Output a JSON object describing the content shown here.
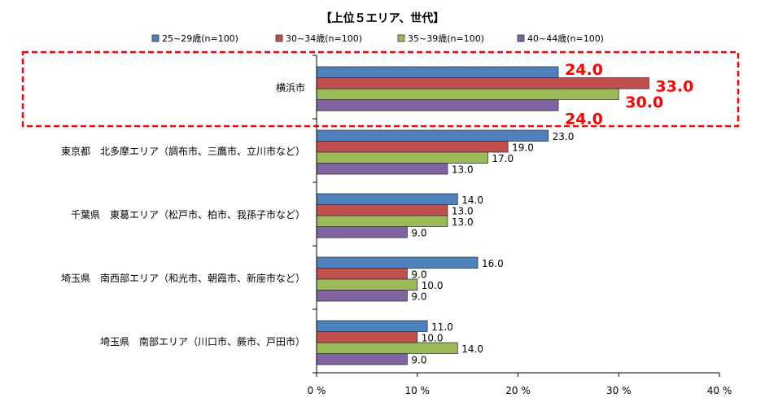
{
  "chart_data": {
    "type": "bar",
    "orientation": "horizontal",
    "title": "【上位５エリア、世代】",
    "categories": [
      "横浜市",
      "東京都　北多摩エリア（調布市、三鷹市、立川市など）",
      "千葉県　東葛エリア（松戸市、柏市、我孫子市など）",
      "埼玉県　南西部エリア（和光市、朝霞市、新座市など）",
      "埼玉県　南部エリア（川口市、蕨市、戸田市）"
    ],
    "series": [
      {
        "name": "25~29歳(n=100)",
        "color": "#4F81BD",
        "values": [
          24.0,
          23.0,
          14.0,
          16.0,
          11.0
        ]
      },
      {
        "name": "30~34歳(n=100)",
        "color": "#C0504D",
        "values": [
          33.0,
          19.0,
          13.0,
          9.0,
          10.0
        ]
      },
      {
        "name": "35~39歳(n=100)",
        "color": "#9BBB59",
        "values": [
          30.0,
          17.0,
          13.0,
          10.0,
          14.0
        ]
      },
      {
        "name": "40~44歳(n=100)",
        "color": "#8064A2",
        "values": [
          24.0,
          13.0,
          9.0,
          9.0,
          9.0
        ]
      }
    ],
    "xlim": [
      0,
      40
    ],
    "xticks": [
      "0 %",
      "10 %",
      "20 %",
      "30 %",
      "40 %"
    ],
    "grid": false,
    "legend_position": "top",
    "highlight": {
      "category_index": 0,
      "color": "#FF0000",
      "style": "dashed box, enlarged red bold labels"
    }
  }
}
